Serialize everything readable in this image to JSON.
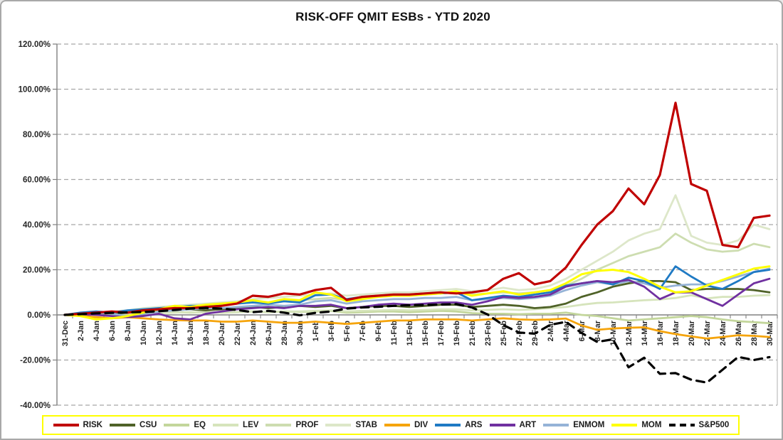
{
  "title": "RISK-OFF QMIT ESBs - YTD 2020",
  "chart_data": {
    "type": "line",
    "title": "RISK-OFF QMIT ESBs - YTD 2020",
    "xlabel": "",
    "ylabel": "",
    "ylim": [
      -40,
      120
    ],
    "y_tick_step": 20,
    "y_tick_format": "percent_2dp",
    "grid": "horizontal-dashed",
    "legend_position": "bottom",
    "legend_border_color": "#FFFF00",
    "categories": [
      "31-Dec",
      "2-Jan",
      "4-Jan",
      "6-Jan",
      "8-Jan",
      "10-Jan",
      "12-Jan",
      "14-Jan",
      "16-Jan",
      "18-Jan",
      "20-Jan",
      "22-Jan",
      "24-Jan",
      "26-Jan",
      "28-Jan",
      "30-Jan",
      "1-Feb",
      "3-Feb",
      "5-Feb",
      "7-Feb",
      "9-Feb",
      "11-Feb",
      "13-Feb",
      "15-Feb",
      "17-Feb",
      "19-Feb",
      "21-Feb",
      "23-Feb",
      "25-Feb",
      "27-Feb",
      "29-Feb",
      "2-Mar",
      "4-Mar",
      "6-Mar",
      "8-Mar",
      "10-Mar",
      "12-Mar",
      "14-Mar",
      "16-Mar",
      "18-Mar",
      "20-Mar",
      "22-Mar",
      "24-Mar",
      "26-Mar",
      "28-Mar",
      "30-Mar"
    ],
    "series": [
      {
        "name": "RISK",
        "color": "#C00000",
        "dash": "none",
        "width": 3.2,
        "values": [
          0,
          0.5,
          1,
          1.5,
          1,
          2,
          2.5,
          3,
          3,
          3.5,
          4,
          5,
          8.5,
          8,
          9.5,
          9,
          11,
          12,
          6.6,
          8,
          8.5,
          9,
          9,
          9.5,
          10,
          9.5,
          10,
          11,
          16,
          18.5,
          13.5,
          15,
          21,
          31,
          40,
          46,
          56,
          49,
          62,
          94,
          58,
          55,
          31,
          30,
          43,
          44
        ]
      },
      {
        "name": "CSU",
        "color": "#4F6228",
        "dash": "none",
        "width": 2.8,
        "values": [
          0,
          0.3,
          0.8,
          0.5,
          1,
          1.5,
          2,
          2,
          2.5,
          2,
          2.5,
          3,
          3.5,
          3,
          3.5,
          4,
          3.5,
          4,
          3,
          3.5,
          4,
          4,
          3.5,
          4,
          4.5,
          4.5,
          3.5,
          4,
          4.5,
          4,
          3,
          3.5,
          5,
          8,
          10,
          12.5,
          14,
          15,
          15,
          14.5,
          11,
          11.5,
          11.5,
          11.5,
          11,
          10
        ]
      },
      {
        "name": "EQ",
        "color": "#C3D69B",
        "dash": "none",
        "width": 2.8,
        "values": [
          0,
          0.2,
          0.5,
          0.3,
          0.5,
          0.8,
          1,
          1.2,
          1,
          1.2,
          1,
          1.2,
          1.5,
          1.2,
          1.5,
          1.3,
          1.5,
          1.8,
          1,
          1.2,
          1.5,
          1.5,
          1.2,
          1.5,
          1.8,
          1.5,
          0.8,
          0.5,
          0.5,
          0.3,
          0.5,
          0.5,
          1,
          0,
          -0.5,
          -1.5,
          -2.5,
          -2,
          -1.5,
          -1,
          -0.5,
          -1,
          -2,
          -2.8,
          -3.2,
          -3.7
        ]
      },
      {
        "name": "LEV",
        "color": "#D6E4BC",
        "dash": "none",
        "width": 2.8,
        "values": [
          0,
          0.2,
          0.4,
          0.3,
          0.5,
          0.7,
          0.8,
          1,
          1.2,
          1,
          1.2,
          1.3,
          1.5,
          1.3,
          1.5,
          1.5,
          1.8,
          2,
          1.5,
          1.8,
          2,
          2.2,
          2,
          2.2,
          2.5,
          2.5,
          2,
          2.2,
          2.5,
          2.2,
          2.5,
          3,
          3.5,
          4.5,
          5.3,
          5.5,
          6,
          6.5,
          6.8,
          7.5,
          8.7,
          7.3,
          8,
          8,
          8.5,
          8.8
        ]
      },
      {
        "name": "PROF",
        "color": "#CDDDB0",
        "dash": "none",
        "width": 2.8,
        "values": [
          0,
          0.4,
          0.8,
          1.2,
          1.6,
          2,
          2.5,
          3,
          3.5,
          4,
          4.5,
          5,
          5.5,
          5.5,
          6,
          6.5,
          7,
          7.5,
          6.5,
          7.5,
          8,
          8.5,
          8.5,
          9,
          9.5,
          10,
          9,
          9.5,
          10,
          9.5,
          10,
          11,
          13,
          16,
          20,
          23,
          26,
          28,
          30,
          36,
          32,
          29,
          28,
          28.5,
          31.5,
          30
        ]
      },
      {
        "name": "STAB",
        "color": "#DDE7C9",
        "dash": "none",
        "width": 2.8,
        "values": [
          0,
          0.5,
          1,
          1.5,
          2,
          3,
          3.5,
          4,
          4.5,
          5,
          5.5,
          6,
          7,
          7.5,
          8,
          8.5,
          9,
          9.5,
          8.5,
          9,
          9.5,
          10,
          10,
          10.5,
          11,
          11.5,
          10.5,
          11,
          12,
          11,
          11.5,
          13,
          16,
          20,
          24,
          28,
          33,
          36,
          38,
          53,
          35,
          32,
          31,
          33,
          40,
          38
        ]
      },
      {
        "name": "DIV",
        "color": "#F5A40C",
        "dash": "none",
        "width": 2.8,
        "values": [
          0,
          -0.5,
          -1,
          -1.5,
          -1,
          -1.5,
          -2,
          -2.3,
          -2.5,
          -2.5,
          -3,
          -3,
          -2.5,
          -3,
          -3.5,
          -3.5,
          -3,
          -3.5,
          -4,
          -3.5,
          -3,
          -2.5,
          -2.5,
          -2,
          -2,
          -2,
          -2.5,
          -2,
          -1.5,
          -2,
          -2.2,
          -2,
          -1.6,
          -4.7,
          -6.6,
          -6,
          -5.7,
          -5.5,
          -7.2,
          -8.5,
          -9.5,
          -10.5,
          -9.8,
          -9,
          -9.3,
          -9.8
        ]
      },
      {
        "name": "ARS",
        "color": "#1F7AC4",
        "dash": "none",
        "width": 2.8,
        "values": [
          0,
          1,
          1.5,
          1,
          2,
          2.5,
          3,
          3.5,
          4,
          4,
          4.5,
          5,
          5.5,
          5,
          6,
          5.5,
          8.7,
          9,
          7,
          8,
          8.5,
          9,
          9,
          9.5,
          9.5,
          10,
          6.5,
          7.5,
          8.5,
          8,
          9,
          10,
          13,
          14,
          15,
          13.5,
          16.5,
          15,
          11.5,
          21.5,
          17,
          13,
          11.5,
          15,
          19,
          20
        ]
      },
      {
        "name": "ART",
        "color": "#7030A0",
        "dash": "none",
        "width": 2.8,
        "values": [
          0,
          0.3,
          0,
          -0.5,
          -1,
          -0.5,
          0.5,
          -1.5,
          -2,
          0.5,
          1.5,
          2.5,
          3,
          3.5,
          3,
          4,
          4,
          4.5,
          3,
          3.5,
          4.5,
          5,
          4.5,
          5,
          5.5,
          5.5,
          4.5,
          6,
          8,
          7.5,
          8,
          9,
          12.5,
          14,
          15,
          14.5,
          15.5,
          12.5,
          7,
          10,
          10,
          7,
          4,
          9,
          14,
          16
        ]
      },
      {
        "name": "ENMOM",
        "color": "#95B3D7",
        "dash": "none",
        "width": 2.8,
        "values": [
          0,
          0.5,
          1,
          0.5,
          -0.5,
          0.5,
          1.5,
          2,
          2.5,
          3,
          3,
          3.5,
          4,
          4.5,
          4,
          4.5,
          6,
          6.5,
          5,
          6,
          6.5,
          7,
          7,
          7.5,
          7.5,
          8,
          6.5,
          7,
          7.5,
          7,
          7.5,
          8.5,
          11,
          13,
          14.5,
          13.5,
          15,
          14,
          12,
          13,
          13.5,
          13.5,
          15,
          17,
          19,
          20.5
        ]
      },
      {
        "name": "MOM",
        "color": "#FFFF00",
        "dash": "none",
        "width": 3,
        "values": [
          0,
          -0.5,
          -2,
          -1.5,
          -0.5,
          1,
          2.5,
          4,
          3.5,
          4.5,
          5,
          5.5,
          6.5,
          5.5,
          7,
          6.5,
          10,
          9,
          6,
          7,
          8,
          8.5,
          8.5,
          9,
          9.5,
          10.5,
          8.5,
          9.5,
          10.5,
          9,
          10,
          11,
          14,
          18,
          19.5,
          20,
          19,
          16,
          12.5,
          10,
          10.5,
          13,
          15.5,
          18,
          20.5,
          21.5
        ]
      },
      {
        "name": "S&P500",
        "color": "#000000",
        "dash": "11,8",
        "width": 3.2,
        "values": [
          0,
          0.3,
          0.7,
          0.9,
          1.1,
          1.3,
          1.6,
          2.2,
          2.8,
          3.1,
          2.8,
          2.2,
          1.2,
          1.8,
          1,
          -0.2,
          0.9,
          1.5,
          2.8,
          3.3,
          3.6,
          4,
          4.3,
          4.4,
          4.6,
          4.8,
          3.3,
          0.2,
          -4.5,
          -7.8,
          -8.3,
          -4.4,
          -3.1,
          -8,
          -12,
          -10.8,
          -23.2,
          -19,
          -26.1,
          -25.8,
          -28.7,
          -30,
          -24.3,
          -18.6,
          -20,
          -18.7
        ]
      }
    ]
  }
}
